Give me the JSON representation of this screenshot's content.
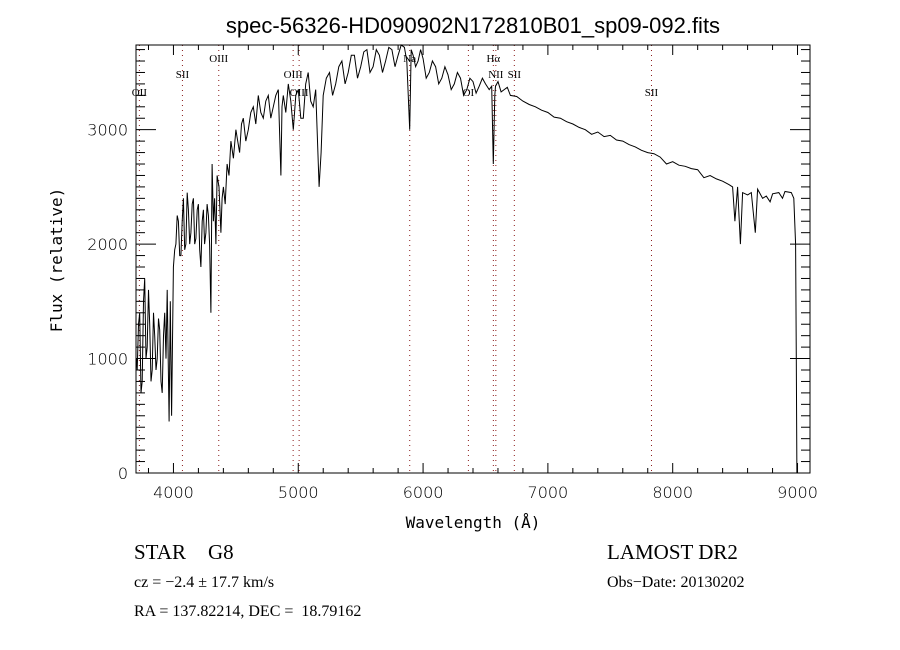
{
  "chart_data": {
    "type": "line",
    "title": "spec-56326-HD090902N172810B01_sp09-092.fits",
    "xlabel": "Wavelength (Å)",
    "ylabel": "Flux (relative)",
    "xlim": [
      3700,
      9100
    ],
    "ylim": [
      0,
      3740
    ],
    "xticks": [
      4000,
      5000,
      6000,
      7000,
      8000,
      9000
    ],
    "yticks": [
      0,
      1000,
      2000,
      3000
    ],
    "grid": false,
    "line_color": "#000000",
    "marker_color": "#8b1a1a",
    "lines": [
      {
        "name": "OII",
        "wavelength": 3727
      },
      {
        "name": "SII",
        "wavelength": 4072
      },
      {
        "name": "OIII",
        "wavelength": 4363
      },
      {
        "name": "OIII",
        "wavelength": 4959
      },
      {
        "name": "OIII",
        "wavelength": 5007
      },
      {
        "name": "Na",
        "wavelength": 5893
      },
      {
        "name": "OI",
        "wavelength": 6363
      },
      {
        "name": "Hα",
        "wavelength": 6563
      },
      {
        "name": "NII",
        "wavelength": 6583
      },
      {
        "name": "SII",
        "wavelength": 6731
      },
      {
        "name": "SII",
        "wavelength": 7830
      }
    ],
    "series": [
      {
        "name": "spectrum",
        "points": [
          [
            3705,
            1000
          ],
          [
            3710,
            900
          ],
          [
            3720,
            1300
          ],
          [
            3730,
            1400
          ],
          [
            3740,
            700
          ],
          [
            3750,
            800
          ],
          [
            3760,
            1500
          ],
          [
            3770,
            1700
          ],
          [
            3780,
            1000
          ],
          [
            3790,
            1100
          ],
          [
            3800,
            1600
          ],
          [
            3810,
            1300
          ],
          [
            3820,
            800
          ],
          [
            3830,
            900
          ],
          [
            3840,
            1400
          ],
          [
            3850,
            1200
          ],
          [
            3860,
            900
          ],
          [
            3870,
            1000
          ],
          [
            3880,
            1350
          ],
          [
            3890,
            1250
          ],
          [
            3900,
            800
          ],
          [
            3910,
            700
          ],
          [
            3920,
            1200
          ],
          [
            3930,
            1400
          ],
          [
            3940,
            1000
          ],
          [
            3950,
            1600
          ],
          [
            3965,
            450
          ],
          [
            3975,
            1500
          ],
          [
            3985,
            500
          ],
          [
            4000,
            1800
          ],
          [
            4010,
            1950
          ],
          [
            4020,
            2000
          ],
          [
            4030,
            2250
          ],
          [
            4040,
            2200
          ],
          [
            4050,
            1900
          ],
          [
            4060,
            1900
          ],
          [
            4070,
            2200
          ],
          [
            4080,
            2400
          ],
          [
            4090,
            1950
          ],
          [
            4100,
            2000
          ],
          [
            4110,
            2450
          ],
          [
            4120,
            2300
          ],
          [
            4130,
            2000
          ],
          [
            4140,
            2100
          ],
          [
            4150,
            2350
          ],
          [
            4160,
            2400
          ],
          [
            4170,
            2000
          ],
          [
            4180,
            2050
          ],
          [
            4190,
            2300
          ],
          [
            4200,
            2350
          ],
          [
            4210,
            1950
          ],
          [
            4220,
            1800
          ],
          [
            4230,
            2200
          ],
          [
            4240,
            2300
          ],
          [
            4250,
            2000
          ],
          [
            4260,
            2100
          ],
          [
            4270,
            2350
          ],
          [
            4280,
            2250
          ],
          [
            4290,
            2000
          ],
          [
            4300,
            1400
          ],
          [
            4310,
            2700
          ],
          [
            4320,
            2200
          ],
          [
            4330,
            2400
          ],
          [
            4340,
            2000
          ],
          [
            4350,
            2600
          ],
          [
            4365,
            2500
          ],
          [
            4380,
            2100
          ],
          [
            4390,
            2400
          ],
          [
            4400,
            2500
          ],
          [
            4415,
            2350
          ],
          [
            4430,
            2700
          ],
          [
            4445,
            2600
          ],
          [
            4460,
            2900
          ],
          [
            4480,
            2750
          ],
          [
            4500,
            3000
          ],
          [
            4515,
            2900
          ],
          [
            4530,
            2800
          ],
          [
            4545,
            3050
          ],
          [
            4560,
            3100
          ],
          [
            4580,
            2900
          ],
          [
            4600,
            3000
          ],
          [
            4620,
            3150
          ],
          [
            4640,
            3200
          ],
          [
            4660,
            3050
          ],
          [
            4680,
            3300
          ],
          [
            4700,
            3150
          ],
          [
            4720,
            3100
          ],
          [
            4740,
            3250
          ],
          [
            4760,
            3300
          ],
          [
            4780,
            3100
          ],
          [
            4800,
            3200
          ],
          [
            4820,
            3300
          ],
          [
            4840,
            3350
          ],
          [
            4861,
            2600
          ],
          [
            4870,
            3200
          ],
          [
            4880,
            3300
          ],
          [
            4900,
            3150
          ],
          [
            4920,
            3400
          ],
          [
            4940,
            3250
          ],
          [
            4960,
            3000
          ],
          [
            4980,
            3300
          ],
          [
            5000,
            3350
          ],
          [
            5020,
            3100
          ],
          [
            5040,
            3100
          ],
          [
            5060,
            3400
          ],
          [
            5080,
            3500
          ],
          [
            5100,
            3250
          ],
          [
            5120,
            3200
          ],
          [
            5140,
            3350
          ],
          [
            5167,
            2500
          ],
          [
            5183,
            2800
          ],
          [
            5200,
            3300
          ],
          [
            5225,
            3450
          ],
          [
            5250,
            3500
          ],
          [
            5275,
            3300
          ],
          [
            5300,
            3400
          ],
          [
            5325,
            3550
          ],
          [
            5350,
            3600
          ],
          [
            5375,
            3400
          ],
          [
            5400,
            3500
          ],
          [
            5425,
            3650
          ],
          [
            5450,
            3650
          ],
          [
            5475,
            3450
          ],
          [
            5500,
            3550
          ],
          [
            5525,
            3680
          ],
          [
            5550,
            3700
          ],
          [
            5575,
            3500
          ],
          [
            5600,
            3550
          ],
          [
            5625,
            3700
          ],
          [
            5650,
            3650
          ],
          [
            5675,
            3500
          ],
          [
            5700,
            3600
          ],
          [
            5725,
            3720
          ],
          [
            5750,
            3700
          ],
          [
            5775,
            3550
          ],
          [
            5800,
            3650
          ],
          [
            5825,
            3740
          ],
          [
            5850,
            3720
          ],
          [
            5870,
            3600
          ],
          [
            5893,
            3000
          ],
          [
            5905,
            3700
          ],
          [
            5920,
            3650
          ],
          [
            5940,
            3550
          ],
          [
            5960,
            3600
          ],
          [
            5980,
            3700
          ],
          [
            6000,
            3620
          ],
          [
            6025,
            3450
          ],
          [
            6050,
            3500
          ],
          [
            6075,
            3600
          ],
          [
            6100,
            3550
          ],
          [
            6125,
            3400
          ],
          [
            6150,
            3450
          ],
          [
            6175,
            3550
          ],
          [
            6200,
            3480
          ],
          [
            6225,
            3350
          ],
          [
            6250,
            3400
          ],
          [
            6275,
            3500
          ],
          [
            6300,
            3450
          ],
          [
            6325,
            3300
          ],
          [
            6350,
            3350
          ],
          [
            6375,
            3450
          ],
          [
            6400,
            3420
          ],
          [
            6425,
            3320
          ],
          [
            6450,
            3380
          ],
          [
            6475,
            3450
          ],
          [
            6500,
            3400
          ],
          [
            6530,
            3350
          ],
          [
            6550,
            3380
          ],
          [
            6563,
            2700
          ],
          [
            6575,
            3300
          ],
          [
            6580,
            3380
          ],
          [
            6600,
            3420
          ],
          [
            6625,
            3330
          ],
          [
            6650,
            3350
          ],
          [
            6675,
            3370
          ],
          [
            6700,
            3300
          ],
          [
            6750,
            3290
          ],
          [
            6800,
            3250
          ],
          [
            6850,
            3220
          ],
          [
            6900,
            3200
          ],
          [
            6950,
            3170
          ],
          [
            7000,
            3150
          ],
          [
            7050,
            3110
          ],
          [
            7100,
            3100
          ],
          [
            7150,
            3070
          ],
          [
            7200,
            3050
          ],
          [
            7250,
            3020
          ],
          [
            7300,
            3000
          ],
          [
            7350,
            2960
          ],
          [
            7400,
            2980
          ],
          [
            7450,
            2940
          ],
          [
            7500,
            2950
          ],
          [
            7550,
            2910
          ],
          [
            7600,
            2900
          ],
          [
            7650,
            2870
          ],
          [
            7700,
            2850
          ],
          [
            7750,
            2820
          ],
          [
            7800,
            2800
          ],
          [
            7850,
            2790
          ],
          [
            7900,
            2760
          ],
          [
            7950,
            2700
          ],
          [
            8000,
            2720
          ],
          [
            8050,
            2690
          ],
          [
            8100,
            2680
          ],
          [
            8150,
            2660
          ],
          [
            8200,
            2650
          ],
          [
            8250,
            2580
          ],
          [
            8300,
            2600
          ],
          [
            8350,
            2570
          ],
          [
            8400,
            2550
          ],
          [
            8450,
            2520
          ],
          [
            8480,
            2500
          ],
          [
            8498,
            2200
          ],
          [
            8520,
            2500
          ],
          [
            8542,
            2000
          ],
          [
            8560,
            2450
          ],
          [
            8600,
            2430
          ],
          [
            8630,
            2450
          ],
          [
            8662,
            2100
          ],
          [
            8680,
            2480
          ],
          [
            8720,
            2400
          ],
          [
            8750,
            2420
          ],
          [
            8780,
            2370
          ],
          [
            8800,
            2440
          ],
          [
            8850,
            2450
          ],
          [
            8880,
            2400
          ],
          [
            8900,
            2460
          ],
          [
            8950,
            2450
          ],
          [
            8970,
            2400
          ],
          [
            8985,
            2000
          ],
          [
            8990,
            1000
          ],
          [
            8995,
            0
          ]
        ]
      }
    ]
  },
  "info": {
    "object_type": "STAR",
    "subclass": "G8",
    "survey": "LAMOST DR2",
    "cz": "cz = −2.4 ± 17.7 km/s",
    "obs_date": "Obs−Date: 20130202",
    "coords": "RA = 137.82214, DEC =  18.79162"
  }
}
